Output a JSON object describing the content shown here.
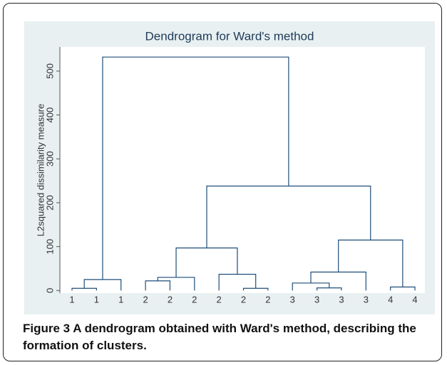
{
  "chart_data": {
    "type": "dendrogram",
    "title": "Dendrogram for Ward's method",
    "y_label": "L2squared dissimilarity measure",
    "ylim": [
      -6,
      555
    ],
    "yticks": [
      0,
      100,
      200,
      300,
      400,
      500
    ],
    "grid": false,
    "color": "#1f4e79",
    "tree": {
      "height": 532,
      "children": [
        {
          "height": 25,
          "children": [
            {
              "height": 5,
              "children": [
                {
                  "label": "1"
                },
                {
                  "label": "1"
                }
              ]
            },
            {
              "label": "1"
            }
          ]
        },
        {
          "height": 238,
          "children": [
            {
              "height": 97,
              "children": [
                {
                  "height": 30,
                  "children": [
                    {
                      "height": 22,
                      "children": [
                        {
                          "label": "2"
                        },
                        {
                          "label": "2"
                        }
                      ]
                    },
                    {
                      "label": "2"
                    }
                  ]
                },
                {
                  "height": 37,
                  "children": [
                    {
                      "label": "2"
                    },
                    {
                      "height": 5,
                      "children": [
                        {
                          "label": "2"
                        },
                        {
                          "label": "2"
                        }
                      ]
                    }
                  ]
                }
              ]
            },
            {
              "height": 115,
              "children": [
                {
                  "height": 42,
                  "children": [
                    {
                      "height": 17,
                      "children": [
                        {
                          "label": "3"
                        },
                        {
                          "height": 6,
                          "children": [
                            {
                              "label": "3"
                            },
                            {
                              "label": "3"
                            }
                          ]
                        }
                      ]
                    },
                    {
                      "label": "3"
                    }
                  ]
                },
                {
                  "height": 8,
                  "children": [
                    {
                      "label": "4"
                    },
                    {
                      "label": "4"
                    }
                  ]
                }
              ]
            }
          ]
        }
      ]
    }
  },
  "caption": {
    "label": "Figure 3",
    "text": "A dendrogram obtained with Ward's method, describing the formation of clusters."
  }
}
